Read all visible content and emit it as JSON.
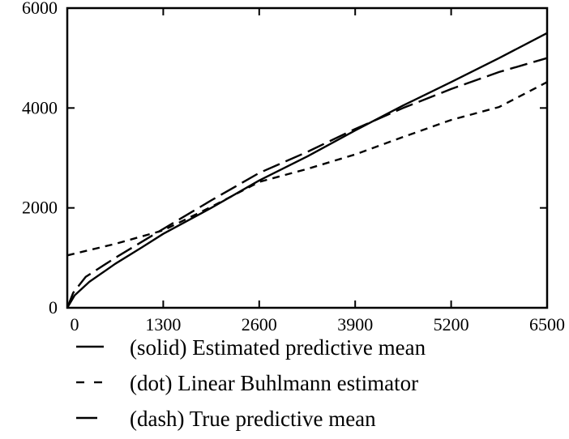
{
  "chart_data": {
    "type": "line",
    "title": "",
    "xlabel": "",
    "ylabel": "",
    "xlim": [
      0,
      6500
    ],
    "ylim": [
      0,
      6000
    ],
    "x_ticks": [
      0,
      1300,
      2600,
      3900,
      5200,
      6500
    ],
    "x_tick_labels": [
      "0",
      "1300",
      "2600",
      "3900",
      "5200",
      "6500"
    ],
    "y_ticks": [
      0,
      2000,
      4000,
      6000
    ],
    "y_tick_labels": [
      "0",
      "2000",
      "4000",
      "6000"
    ],
    "grid": false,
    "legend": {
      "placement": "below",
      "entries": [
        {
          "series": 0,
          "label": "(solid) Estimated predictive mean",
          "style": "solid"
        },
        {
          "series": 1,
          "label": "(dot) Linear Buhlmann estimator",
          "style": "dashed-short"
        },
        {
          "series": 2,
          "label": "(dash) True predictive mean",
          "style": "dashed-long"
        }
      ]
    },
    "series": [
      {
        "name": "(solid) Estimated predictive mean",
        "style": "solid",
        "color": "#000000",
        "points": [
          [
            0,
            0
          ],
          [
            100,
            250
          ],
          [
            300,
            520
          ],
          [
            650,
            880
          ],
          [
            1000,
            1200
          ],
          [
            1300,
            1480
          ],
          [
            1950,
            2000
          ],
          [
            2600,
            2550
          ],
          [
            3250,
            3030
          ],
          [
            3900,
            3550
          ],
          [
            4550,
            4050
          ],
          [
            5200,
            4520
          ],
          [
            5850,
            5000
          ],
          [
            6500,
            5500
          ]
        ]
      },
      {
        "name": "(dot) Linear Buhlmann estimator",
        "style": "dashed-short",
        "color": "#000000",
        "points": [
          [
            0,
            1050
          ],
          [
            650,
            1280
          ],
          [
            1300,
            1550
          ],
          [
            1950,
            2020
          ],
          [
            2600,
            2520
          ],
          [
            3250,
            2780
          ],
          [
            3900,
            3070
          ],
          [
            4550,
            3420
          ],
          [
            5200,
            3760
          ],
          [
            5850,
            4020
          ],
          [
            6500,
            4520
          ]
        ]
      },
      {
        "name": "(dash) True predictive mean",
        "style": "dashed-long",
        "color": "#000000",
        "points": [
          [
            0,
            0
          ],
          [
            80,
            300
          ],
          [
            250,
            620
          ],
          [
            650,
            1000
          ],
          [
            1300,
            1580
          ],
          [
            1950,
            2150
          ],
          [
            2600,
            2700
          ],
          [
            3250,
            3120
          ],
          [
            3900,
            3580
          ],
          [
            4550,
            4000
          ],
          [
            5200,
            4380
          ],
          [
            5850,
            4720
          ],
          [
            6500,
            5000
          ]
        ]
      }
    ]
  }
}
